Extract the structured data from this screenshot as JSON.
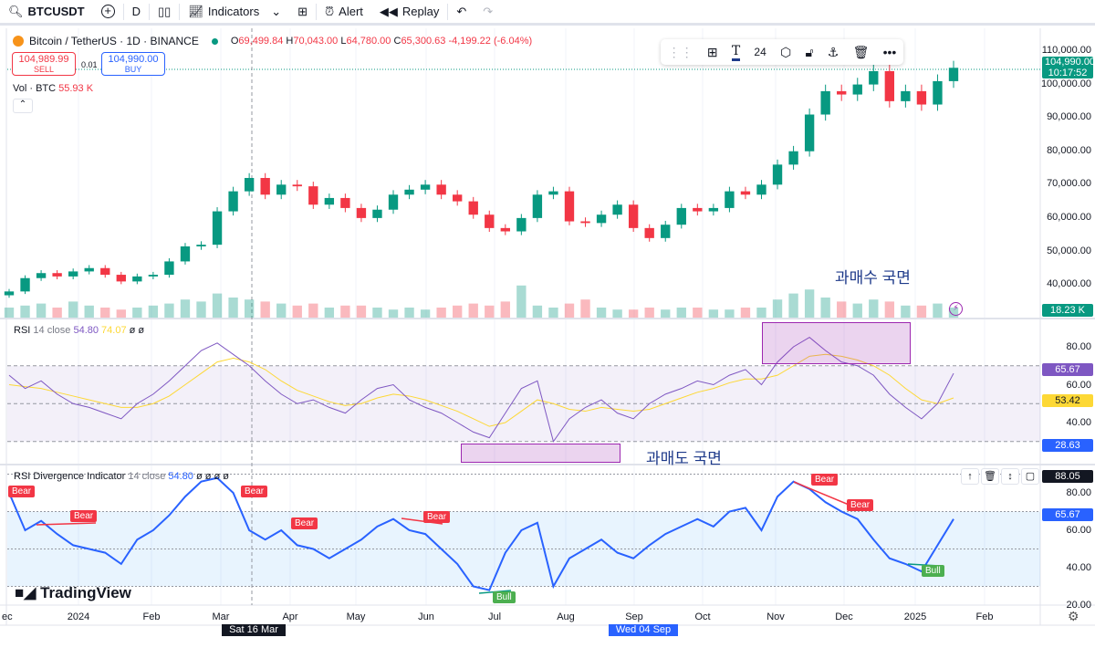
{
  "toolbar": {
    "symbol": "BTCUSDT",
    "interval": "D",
    "indicators": "Indicators",
    "alert": "Alert",
    "replay": "Replay"
  },
  "legend": {
    "title": "Bitcoin / TetherUS · 1D · BINANCE",
    "o_label": "O",
    "o": "69,499.84",
    "h_label": "H",
    "h": "70,043.00",
    "l_label": "L",
    "l": "64,780.00",
    "c_label": "C",
    "c": "65,300.63",
    "change": "-4,199.22 (-6.04%)"
  },
  "trade": {
    "sell_price": "104,989.99",
    "sell": "SELL",
    "spread": "0.01",
    "buy_price": "104,990.00",
    "buy": "BUY"
  },
  "vol": {
    "label": "Vol · BTC",
    "value": "55.93 K"
  },
  "drawing_toolbar": {
    "font_size": "24"
  },
  "price_axis": [
    "110,000.00",
    "100,000.00",
    "90,000.00",
    "80,000.00",
    "70,000.00",
    "60,000.00",
    "50,000.00",
    "40,000.00"
  ],
  "price_tag": {
    "price": "104,990.00",
    "countdown": "10:17:52",
    "vol": "18.23 K"
  },
  "rsi": {
    "label": "RSI",
    "params": "14 close",
    "value": "54.80",
    "ma": "74.07",
    "na": "ø ø",
    "axis": [
      "80.00",
      "60.00",
      "40.00"
    ],
    "tags": [
      "65.67",
      "53.42",
      "28.63"
    ]
  },
  "div": {
    "label": "RSI Divergence Indicator",
    "params": "14 close",
    "value": "54.80",
    "na": "ø ø ø ø",
    "axis": [
      "80.00",
      "60.00",
      "40.00",
      "20.00"
    ],
    "tags": [
      "88.05",
      "65.67"
    ],
    "bear": "Bear",
    "bull": "Bull"
  },
  "annotations": {
    "overbought": "과매수 국면",
    "oversold": "과매도 국면"
  },
  "time_axis": [
    "ec",
    "2024",
    "Feb",
    "Mar",
    "Apr",
    "May",
    "Jun",
    "Jul",
    "Aug",
    "Sep",
    "Oct",
    "Nov",
    "Dec",
    "2025",
    "Feb"
  ],
  "crosshair": {
    "date": "Sat 16 Mar '24",
    "date2": "Wed 04 Sep '24"
  },
  "logo": "TradingView",
  "colors": {
    "up": "#089981",
    "down": "#f23645",
    "rsi": "#7e57c2",
    "rsi_ma": "#fdd835",
    "div": "#2962ff"
  },
  "chart_data": {
    "type": "candlestick",
    "closes": [
      38000,
      42000,
      43500,
      42500,
      44000,
      45000,
      43000,
      41000,
      42500,
      43000,
      47000,
      51500,
      52000,
      62000,
      68000,
      72000,
      67000,
      70000,
      69500,
      64000,
      66000,
      63000,
      60000,
      62500,
      67000,
      68500,
      70000,
      67000,
      65000,
      61000,
      57000,
      56000,
      60000,
      67000,
      68000,
      59000,
      58500,
      61000,
      64000,
      57000,
      54000,
      58000,
      63000,
      62000,
      63000,
      68000,
      67000,
      70000,
      76000,
      80000,
      91000,
      98000,
      97000,
      100000,
      104000,
      95000,
      98000,
      94000,
      101000,
      105000
    ],
    "volume": [
      5,
      6,
      7,
      5,
      8,
      6,
      5,
      4,
      5,
      6,
      7,
      9,
      8,
      12,
      10,
      9,
      8,
      7,
      6,
      7,
      5,
      6,
      6,
      5,
      4,
      5,
      4,
      5,
      6,
      7,
      6,
      8,
      16,
      6,
      5,
      7,
      9,
      5,
      4,
      4,
      5,
      4,
      5,
      5,
      4,
      4,
      5,
      5,
      9,
      12,
      14,
      10,
      8,
      7,
      9,
      8,
      6,
      6,
      7,
      5
    ],
    "rsi": [
      65,
      58,
      62,
      55,
      50,
      48,
      45,
      42,
      50,
      55,
      62,
      70,
      78,
      82,
      76,
      70,
      62,
      55,
      50,
      52,
      48,
      45,
      52,
      58,
      60,
      52,
      48,
      45,
      40,
      35,
      32,
      45,
      58,
      62,
      30,
      42,
      48,
      52,
      45,
      42,
      50,
      55,
      58,
      62,
      60,
      65,
      68,
      60,
      72,
      80,
      85,
      78,
      72,
      70,
      65,
      55,
      48,
      42,
      50,
      66
    ],
    "rsi_ma": [
      60,
      59,
      58,
      56,
      54,
      52,
      50,
      48,
      48,
      50,
      54,
      60,
      66,
      72,
      74,
      72,
      68,
      62,
      57,
      54,
      51,
      49,
      50,
      53,
      55,
      54,
      52,
      49,
      46,
      42,
      38,
      40,
      46,
      52,
      50,
      47,
      46,
      48,
      47,
      46,
      47,
      50,
      53,
      56,
      58,
      61,
      63,
      63,
      65,
      70,
      75,
      76,
      75,
      73,
      70,
      65,
      58,
      52,
      50,
      53
    ],
    "div_rsi": [
      80,
      60,
      65,
      58,
      52,
      50,
      48,
      42,
      55,
      60,
      68,
      78,
      86,
      88,
      80,
      60,
      55,
      60,
      52,
      50,
      45,
      50,
      55,
      62,
      66,
      60,
      58,
      50,
      42,
      30,
      28,
      48,
      60,
      64,
      30,
      45,
      50,
      55,
      48,
      45,
      52,
      58,
      62,
      66,
      62,
      70,
      72,
      60,
      78,
      86,
      82,
      75,
      70,
      66,
      55,
      45,
      42,
      38,
      52,
      66
    ]
  }
}
